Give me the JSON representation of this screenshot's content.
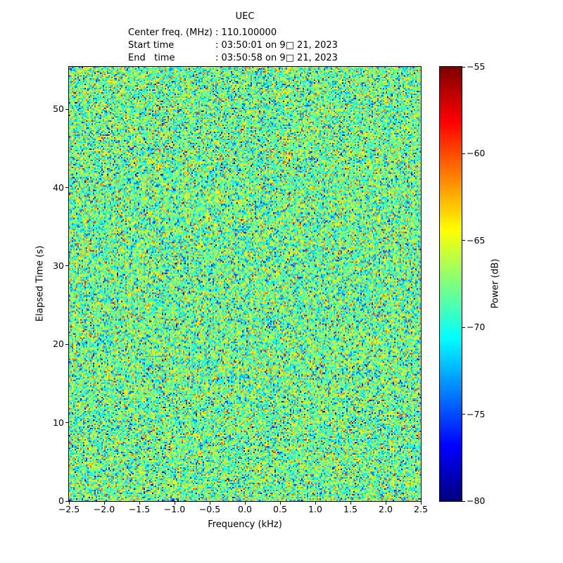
{
  "header": {
    "lines": [
      {
        "label": "Center freq. (MHz)",
        "value": ": 110.100000"
      },
      {
        "label": "Start time",
        "value": ": 03:50:01 on 9□ 21, 2023"
      },
      {
        "label": "End   time",
        "value": ": 03:50:58 on 9□ 21, 2023"
      }
    ]
  },
  "chart_data": {
    "type": "heatmap",
    "title": "UEC",
    "xlabel": "Frequency (kHz)",
    "ylabel": "Elapsed Time (s)",
    "xlim": [
      -2.5,
      2.5
    ],
    "ylim": [
      0,
      55.4
    ],
    "x_ticks": {
      "values": [
        -2.5,
        -2.0,
        -1.5,
        -1.0,
        -0.5,
        0.0,
        0.5,
        1.0,
        1.5,
        2.0,
        2.5
      ],
      "labels": [
        "−2.5",
        "−2.0",
        "−1.5",
        "−1.0",
        "−0.5",
        "0.0",
        "0.5",
        "1.0",
        "1.5",
        "2.0",
        "2.5"
      ]
    },
    "y_ticks": {
      "values": [
        0,
        10,
        20,
        30,
        40,
        50
      ],
      "labels": [
        "0",
        "10",
        "20",
        "30",
        "40",
        "50"
      ]
    },
    "colorbar": {
      "label": "Power (dB)",
      "colormap": "jet",
      "vmin": -80,
      "vmax": -55,
      "tick_values": [
        -55,
        -60,
        -65,
        -70,
        -75,
        -80
      ],
      "tick_labels": [
        "−55",
        "−60",
        "−65",
        "−70",
        "−75",
        "−80"
      ]
    },
    "noise": {
      "description": "uniform random noise field with no visible signal; bulk power around −70 to −64 dB (cyan/green/yellow) with sparse speckles toward −80 dB (dark blue) and −55 dB (dark red)",
      "mean_db": -68,
      "std_db": 3.5,
      "rows": 308,
      "cols": 250,
      "seed": 42
    }
  }
}
